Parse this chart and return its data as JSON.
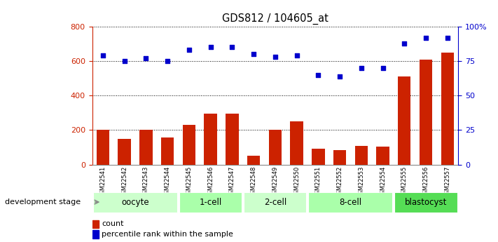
{
  "title": "GDS812 / 104605_at",
  "samples": [
    "GSM22541",
    "GSM22542",
    "GSM22543",
    "GSM22544",
    "GSM22545",
    "GSM22546",
    "GSM22547",
    "GSM22548",
    "GSM22549",
    "GSM22550",
    "GSM22551",
    "GSM22552",
    "GSM22553",
    "GSM22554",
    "GSM22555",
    "GSM22556",
    "GSM22557"
  ],
  "count_values": [
    200,
    150,
    200,
    155,
    230,
    295,
    295,
    50,
    200,
    250,
    90,
    85,
    110,
    105,
    510,
    610,
    650
  ],
  "percentile_values": [
    79,
    75,
    77,
    75,
    83,
    85,
    85,
    80,
    78,
    79,
    65,
    64,
    70,
    70,
    88,
    92,
    92
  ],
  "bar_color": "#cc2200",
  "dot_color": "#0000cc",
  "left_ylim": [
    0,
    800
  ],
  "right_ylim": [
    0,
    100
  ],
  "left_yticks": [
    0,
    200,
    400,
    600,
    800
  ],
  "right_yticks": [
    0,
    25,
    50,
    75,
    100
  ],
  "right_yticklabels": [
    "0",
    "25",
    "50",
    "75",
    "100%"
  ],
  "groups": [
    {
      "label": "oocyte",
      "start": 0,
      "end": 3,
      "color": "#ccffcc"
    },
    {
      "label": "1-cell",
      "start": 4,
      "end": 6,
      "color": "#aaffaa"
    },
    {
      "label": "2-cell",
      "start": 7,
      "end": 9,
      "color": "#ccffcc"
    },
    {
      "label": "8-cell",
      "start": 10,
      "end": 13,
      "color": "#aaffaa"
    },
    {
      "label": "blastocyst",
      "start": 14,
      "end": 16,
      "color": "#55dd55"
    }
  ],
  "dev_stage_label": "development stage",
  "legend_count_label": "count",
  "legend_pct_label": "percentile rank within the sample",
  "bg_color": "#ffffff",
  "tick_color_left": "#cc2200",
  "tick_color_right": "#0000cc",
  "tick_label_bg": "#cccccc",
  "arrow_color": "#888888"
}
